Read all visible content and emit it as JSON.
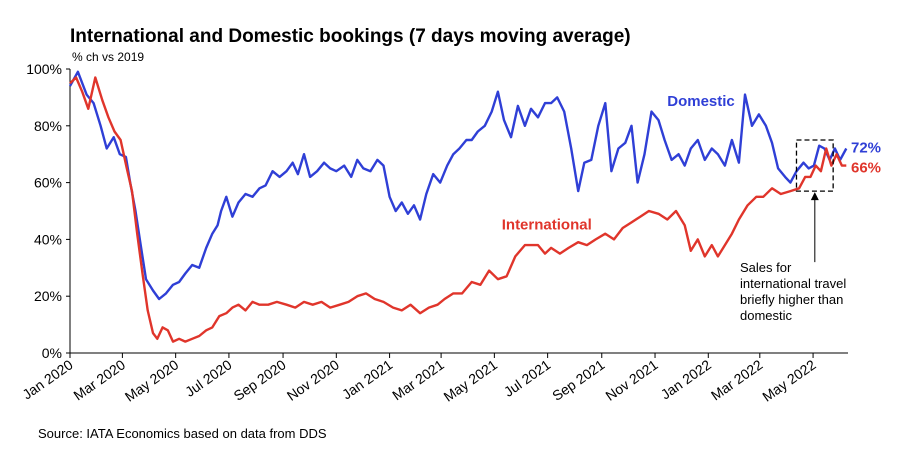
{
  "chart_data": {
    "type": "line",
    "title": "International and Domestic bookings (7 days moving average)",
    "subtitle": "% ch vs 2019",
    "source": "Source: IATA Economics based on data from DDS",
    "ylim": [
      0,
      100
    ],
    "y_ticks": [
      0,
      20,
      40,
      60,
      80,
      100
    ],
    "y_tick_labels": [
      "0%",
      "20%",
      "40%",
      "60%",
      "80%",
      "100%"
    ],
    "x_range": [
      "2020-01-01",
      "2022-06-10"
    ],
    "x_ticks": [
      "2020-01-01",
      "2020-03-01",
      "2020-05-01",
      "2020-07-01",
      "2020-09-01",
      "2020-11-01",
      "2021-01-01",
      "2021-03-01",
      "2021-05-01",
      "2021-07-01",
      "2021-09-01",
      "2021-11-01",
      "2022-01-01",
      "2022-03-01",
      "2022-05-01"
    ],
    "x_tick_labels": [
      "Jan 2020",
      "Mar 2020",
      "May 2020",
      "Jul 2020",
      "Sep 2020",
      "Nov 2020",
      "Jan 2021",
      "Mar 2021",
      "May 2021",
      "Jul 2021",
      "Sep 2021",
      "Nov 2021",
      "Jan 2022",
      "Mar 2022",
      "May 2022"
    ],
    "series": [
      {
        "name": "Domestic",
        "color": "#2f3fd6",
        "end_label": "72%",
        "x": [
          "2020-01-01",
          "2020-01-10",
          "2020-01-20",
          "2020-01-28",
          "2020-02-05",
          "2020-02-12",
          "2020-02-20",
          "2020-02-27",
          "2020-03-05",
          "2020-03-10",
          "2020-03-16",
          "2020-03-22",
          "2020-03-28",
          "2020-04-05",
          "2020-04-12",
          "2020-04-20",
          "2020-04-28",
          "2020-05-05",
          "2020-05-12",
          "2020-05-20",
          "2020-05-28",
          "2020-06-05",
          "2020-06-12",
          "2020-06-18",
          "2020-06-22",
          "2020-06-28",
          "2020-07-05",
          "2020-07-12",
          "2020-07-20",
          "2020-07-28",
          "2020-08-05",
          "2020-08-12",
          "2020-08-20",
          "2020-08-28",
          "2020-09-05",
          "2020-09-12",
          "2020-09-18",
          "2020-09-25",
          "2020-10-02",
          "2020-10-10",
          "2020-10-18",
          "2020-10-25",
          "2020-11-01",
          "2020-11-10",
          "2020-11-18",
          "2020-11-25",
          "2020-12-02",
          "2020-12-10",
          "2020-12-18",
          "2020-12-25",
          "2021-01-01",
          "2021-01-08",
          "2021-01-15",
          "2021-01-22",
          "2021-01-29",
          "2021-02-05",
          "2021-02-12",
          "2021-02-20",
          "2021-02-28",
          "2021-03-08",
          "2021-03-15",
          "2021-03-22",
          "2021-03-30",
          "2021-04-05",
          "2021-04-12",
          "2021-04-20",
          "2021-04-28",
          "2021-05-05",
          "2021-05-12",
          "2021-05-20",
          "2021-05-28",
          "2021-06-05",
          "2021-06-12",
          "2021-06-20",
          "2021-06-28",
          "2021-07-05",
          "2021-07-12",
          "2021-07-20",
          "2021-07-28",
          "2021-08-05",
          "2021-08-12",
          "2021-08-20",
          "2021-08-28",
          "2021-09-05",
          "2021-09-12",
          "2021-09-20",
          "2021-09-28",
          "2021-10-05",
          "2021-10-12",
          "2021-10-20",
          "2021-10-28",
          "2021-11-05",
          "2021-11-12",
          "2021-11-20",
          "2021-11-28",
          "2021-12-05",
          "2021-12-12",
          "2021-12-20",
          "2021-12-28",
          "2022-01-05",
          "2022-01-12",
          "2022-01-20",
          "2022-01-28",
          "2022-02-05",
          "2022-02-12",
          "2022-02-20",
          "2022-02-28",
          "2022-03-08",
          "2022-03-15",
          "2022-03-22",
          "2022-03-30",
          "2022-04-05",
          "2022-04-12",
          "2022-04-20",
          "2022-04-26",
          "2022-05-02",
          "2022-05-08",
          "2022-05-14",
          "2022-05-20",
          "2022-05-26",
          "2022-06-01",
          "2022-06-08"
        ],
        "values": [
          94,
          99,
          91,
          88,
          80,
          72,
          76,
          70,
          69,
          60,
          50,
          38,
          26,
          22,
          19,
          21,
          24,
          25,
          28,
          31,
          30,
          37,
          42,
          45,
          50,
          55,
          48,
          53,
          56,
          55,
          58,
          59,
          64,
          62,
          64,
          67,
          63,
          70,
          62,
          64,
          67,
          65,
          64,
          66,
          62,
          68,
          65,
          64,
          68,
          66,
          55,
          50,
          53,
          49,
          52,
          47,
          56,
          63,
          60,
          66,
          70,
          72,
          75,
          75,
          78,
          80,
          85,
          92,
          82,
          76,
          87,
          80,
          86,
          83,
          88,
          88,
          90,
          85,
          72,
          57,
          67,
          68,
          80,
          88,
          64,
          72,
          74,
          80,
          60,
          70,
          85,
          82,
          75,
          68,
          70,
          66,
          72,
          75,
          68,
          72,
          70,
          66,
          75,
          67,
          91,
          80,
          84,
          80,
          74,
          65,
          62,
          60,
          64,
          67,
          65,
          66,
          73,
          72,
          68,
          72,
          68,
          72
        ]
      },
      {
        "name": "International",
        "color": "#e0352b",
        "end_label": "66%",
        "x": [
          "2020-01-01",
          "2020-01-08",
          "2020-01-15",
          "2020-01-22",
          "2020-01-30",
          "2020-02-07",
          "2020-02-14",
          "2020-02-21",
          "2020-02-28",
          "2020-03-06",
          "2020-03-12",
          "2020-03-18",
          "2020-03-24",
          "2020-03-30",
          "2020-04-05",
          "2020-04-10",
          "2020-04-16",
          "2020-04-22",
          "2020-04-28",
          "2020-05-05",
          "2020-05-12",
          "2020-05-20",
          "2020-05-28",
          "2020-06-05",
          "2020-06-12",
          "2020-06-20",
          "2020-06-28",
          "2020-07-05",
          "2020-07-12",
          "2020-07-20",
          "2020-07-28",
          "2020-08-05",
          "2020-08-15",
          "2020-08-25",
          "2020-09-05",
          "2020-09-15",
          "2020-09-25",
          "2020-10-05",
          "2020-10-15",
          "2020-10-25",
          "2020-11-05",
          "2020-11-15",
          "2020-11-25",
          "2020-12-05",
          "2020-12-15",
          "2020-12-25",
          "2021-01-05",
          "2021-01-15",
          "2021-01-25",
          "2021-02-05",
          "2021-02-15",
          "2021-02-25",
          "2021-03-05",
          "2021-03-15",
          "2021-03-25",
          "2021-04-05",
          "2021-04-15",
          "2021-04-25",
          "2021-05-05",
          "2021-05-15",
          "2021-05-25",
          "2021-06-05",
          "2021-06-12",
          "2021-06-20",
          "2021-06-28",
          "2021-07-05",
          "2021-07-15",
          "2021-07-25",
          "2021-08-05",
          "2021-08-15",
          "2021-08-25",
          "2021-09-05",
          "2021-09-15",
          "2021-09-25",
          "2021-10-05",
          "2021-10-15",
          "2021-10-25",
          "2021-11-05",
          "2021-11-15",
          "2021-11-25",
          "2021-12-05",
          "2021-12-12",
          "2021-12-20",
          "2021-12-28",
          "2022-01-05",
          "2022-01-12",
          "2022-01-20",
          "2022-01-28",
          "2022-02-05",
          "2022-02-15",
          "2022-02-25",
          "2022-03-05",
          "2022-03-15",
          "2022-03-25",
          "2022-04-05",
          "2022-04-15",
          "2022-04-22",
          "2022-04-28",
          "2022-05-04",
          "2022-05-10",
          "2022-05-16",
          "2022-05-22",
          "2022-05-28",
          "2022-06-03",
          "2022-06-08"
        ],
        "values": [
          95,
          97,
          92,
          86,
          97,
          89,
          83,
          78,
          75,
          65,
          57,
          42,
          28,
          15,
          7,
          5,
          9,
          8,
          4,
          5,
          4,
          5,
          6,
          8,
          9,
          13,
          14,
          16,
          17,
          15,
          18,
          17,
          17,
          18,
          17,
          16,
          18,
          17,
          18,
          16,
          17,
          18,
          20,
          21,
          19,
          18,
          16,
          15,
          17,
          14,
          16,
          17,
          19,
          21,
          21,
          25,
          24,
          29,
          26,
          27,
          34,
          38,
          38,
          38,
          35,
          37,
          35,
          37,
          39,
          38,
          40,
          42,
          40,
          44,
          46,
          48,
          50,
          49,
          47,
          50,
          45,
          36,
          40,
          34,
          38,
          34,
          38,
          42,
          47,
          52,
          55,
          55,
          58,
          56,
          57,
          58,
          62,
          62,
          66,
          64,
          72,
          66,
          70,
          66,
          66
        ]
      }
    ],
    "annotation": {
      "lines": [
        "Sales for",
        "international travel",
        "briefly higher than",
        "domestic"
      ],
      "box_x": [
        "2022-04-12",
        "2022-05-24"
      ],
      "box_y": [
        57,
        75
      ],
      "arrow_from_y": 32
    }
  }
}
